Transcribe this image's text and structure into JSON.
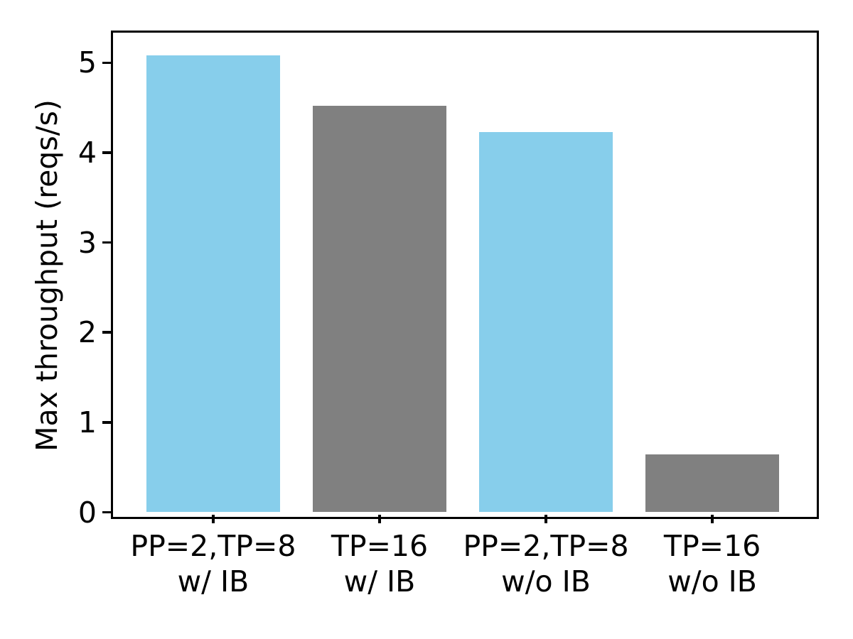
{
  "chart_data": {
    "type": "bar",
    "title": "",
    "xlabel": "",
    "ylabel": "Max throughput (reqs/s)",
    "categories": [
      [
        "PP=2,TP=8",
        "w/ IB"
      ],
      [
        "TP=16",
        "w/ IB"
      ],
      [
        "PP=2,TP=8",
        "w/o IB"
      ],
      [
        "TP=16",
        "w/o IB"
      ]
    ],
    "values": [
      5.08,
      4.52,
      4.23,
      0.64
    ],
    "bar_colors": [
      "#87CEEB",
      "#808080",
      "#87CEEB",
      "#808080"
    ],
    "yticks": [
      0,
      1,
      2,
      3,
      4,
      5
    ],
    "ylim": [
      0,
      5.33
    ],
    "bar_width_fraction": 0.8,
    "grid": false,
    "legend": null,
    "axis_color": "#000000",
    "background_color": "#ffffff"
  }
}
